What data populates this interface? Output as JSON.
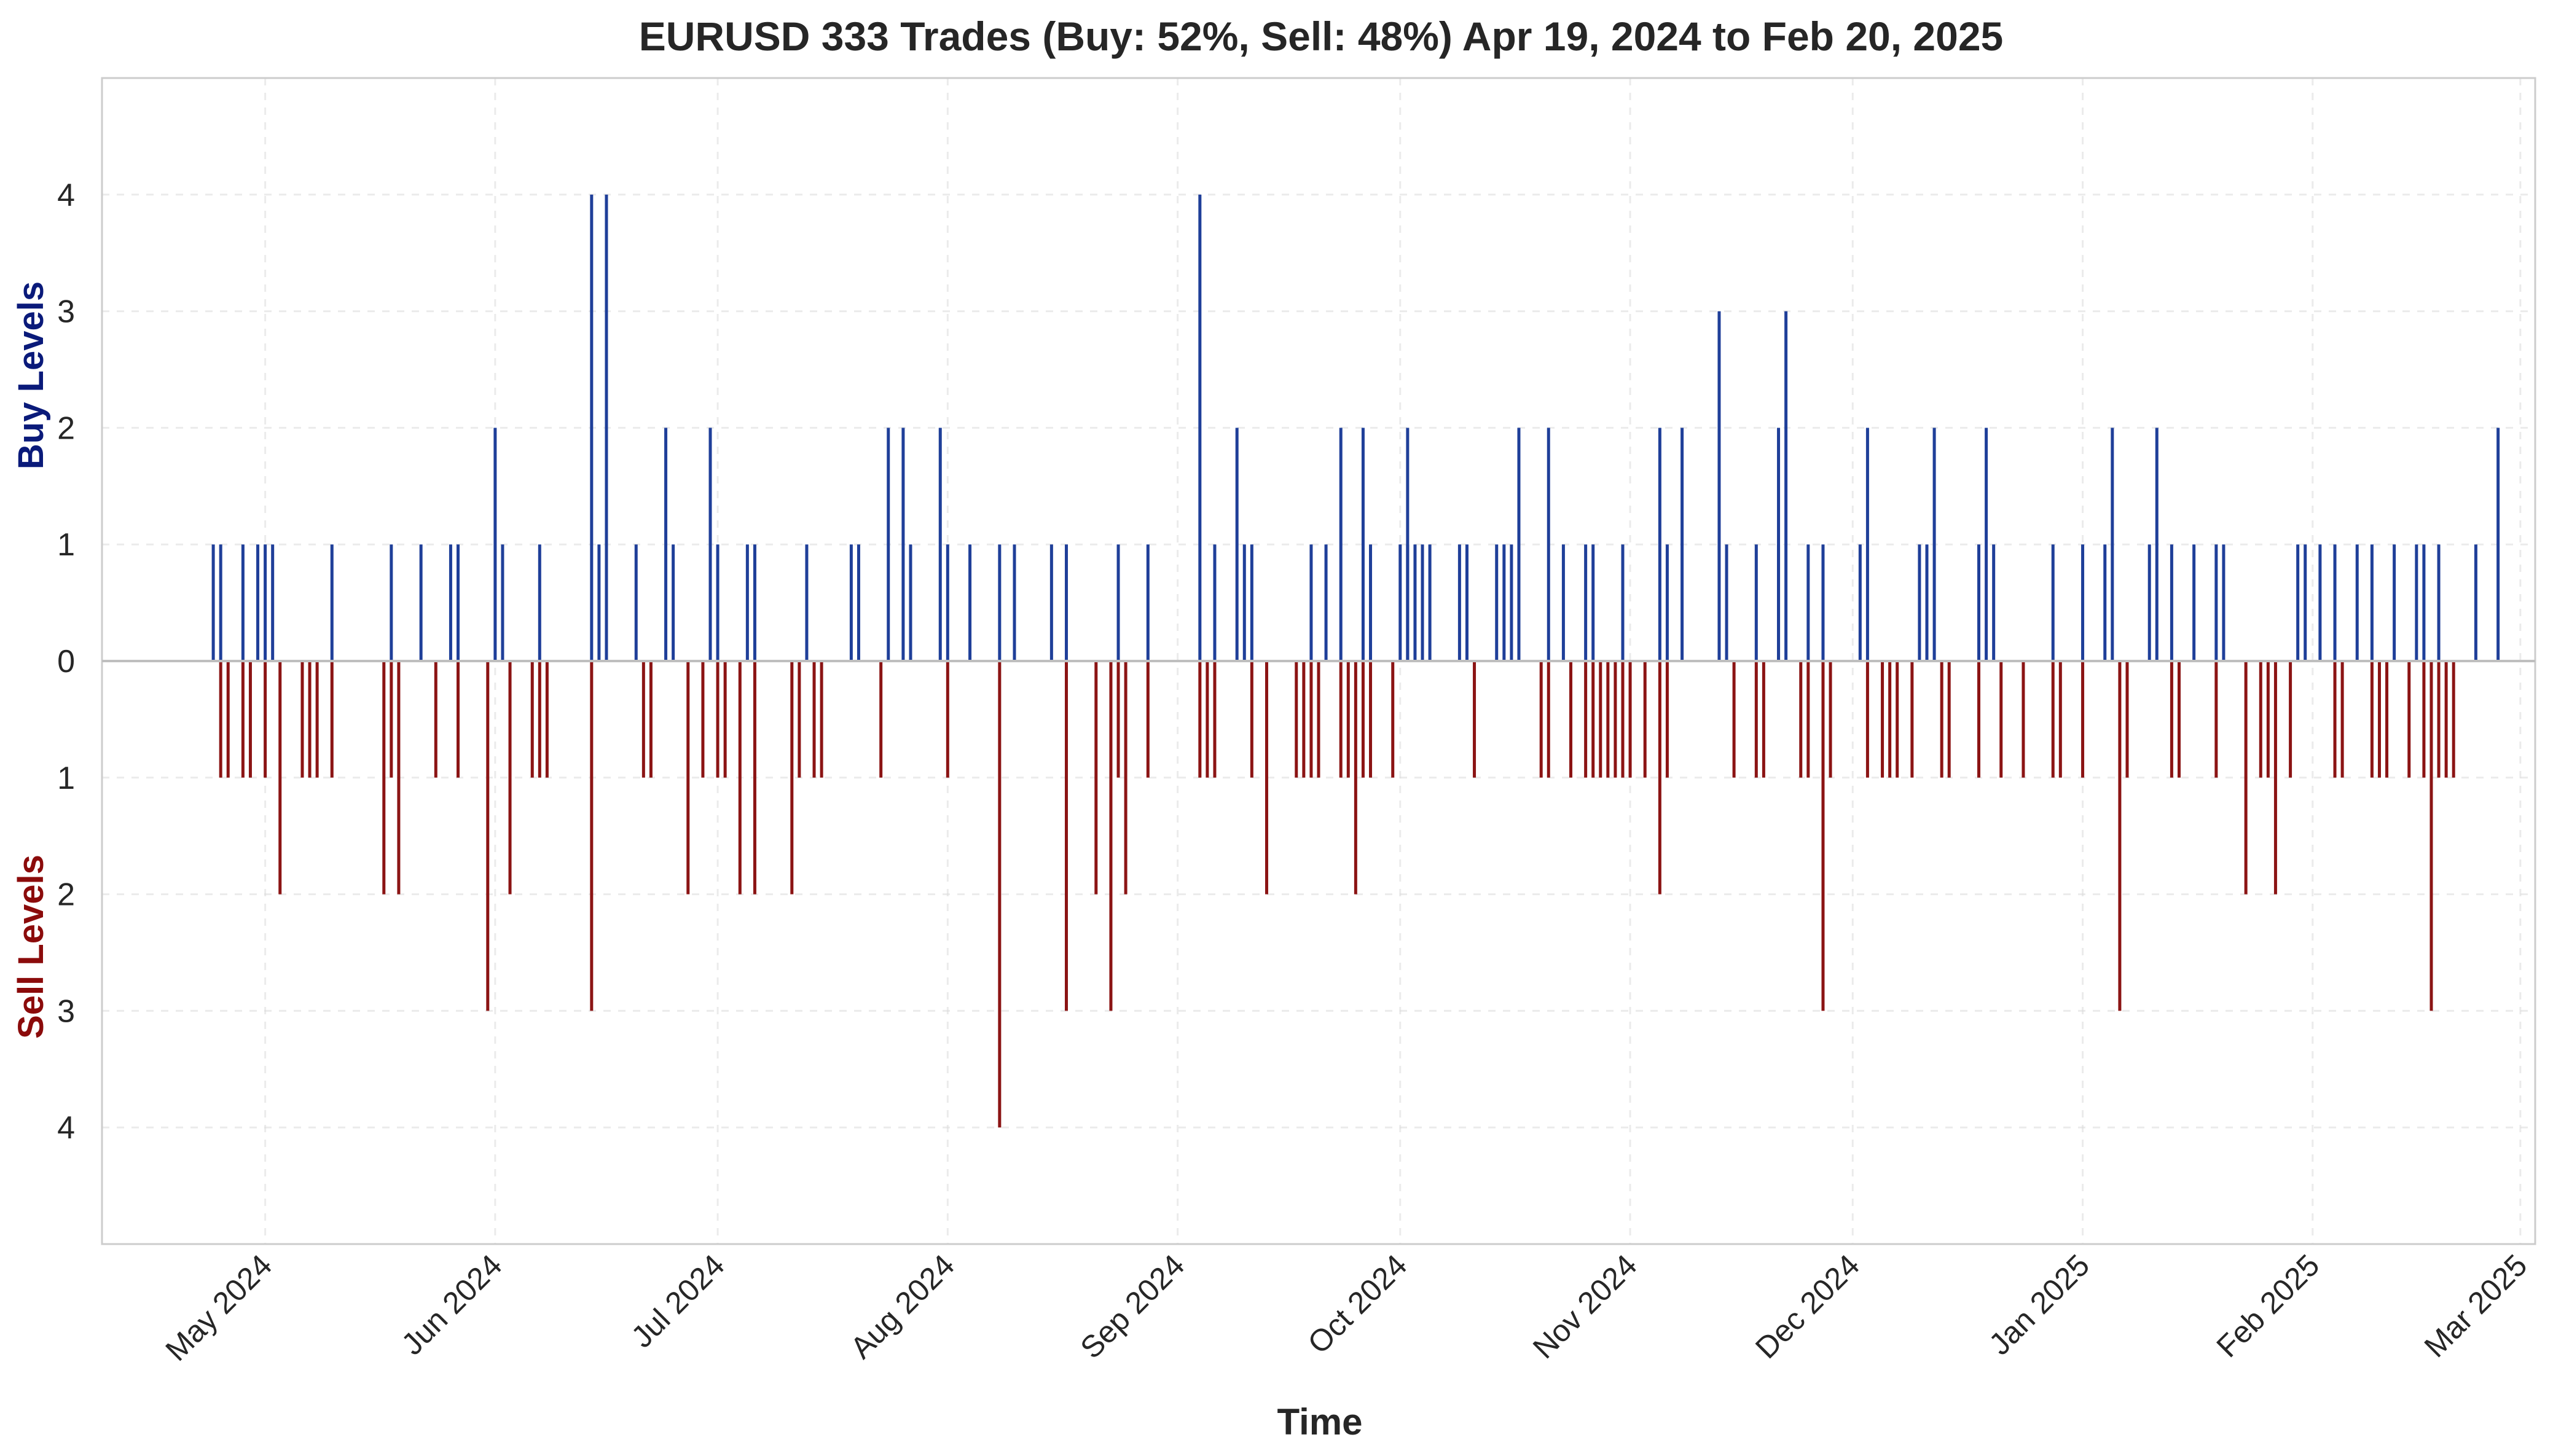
{
  "chart_data": {
    "type": "bar",
    "title": "EURUSD 333 Trades (Buy: 52%, Sell: 48%) Apr 19, 2024 to Feb 20, 2025",
    "xlabel": "Time",
    "ylabel_buy": "Buy Levels",
    "ylabel_sell": "Sell Levels",
    "ylim": [
      -5,
      5
    ],
    "xlim": [
      "2024-04-09",
      "2025-03-03"
    ],
    "grid": true,
    "y_ticks": [
      {
        "value": 4,
        "label": "4"
      },
      {
        "value": 3,
        "label": "3"
      },
      {
        "value": 2,
        "label": "2"
      },
      {
        "value": 1,
        "label": "1"
      },
      {
        "value": 0,
        "label": "0"
      },
      {
        "value": -1,
        "label": "1"
      },
      {
        "value": -2,
        "label": "2"
      },
      {
        "value": -3,
        "label": "3"
      },
      {
        "value": -4,
        "label": "4"
      }
    ],
    "x_ticks": [
      {
        "date": "2024-05-01",
        "label": "May 2024"
      },
      {
        "date": "2024-06-01",
        "label": "Jun 2024"
      },
      {
        "date": "2024-07-01",
        "label": "Jul 2024"
      },
      {
        "date": "2024-08-01",
        "label": "Aug 2024"
      },
      {
        "date": "2024-09-01",
        "label": "Sep 2024"
      },
      {
        "date": "2024-10-01",
        "label": "Oct 2024"
      },
      {
        "date": "2024-11-01",
        "label": "Nov 2024"
      },
      {
        "date": "2024-12-01",
        "label": "Dec 2024"
      },
      {
        "date": "2025-01-01",
        "label": "Jan 2025"
      },
      {
        "date": "2025-02-01",
        "label": "Feb 2025"
      },
      {
        "date": "2025-03-01",
        "label": "Mar 2025"
      }
    ],
    "series": [
      {
        "name": "Buy",
        "color": "#1f3f99",
        "points": [
          [
            "2024-04-24",
            1
          ],
          [
            "2024-04-25",
            1
          ],
          [
            "2024-04-28",
            1
          ],
          [
            "2024-04-30",
            1
          ],
          [
            "2024-05-01",
            1
          ],
          [
            "2024-05-02",
            1
          ],
          [
            "2024-05-10",
            1
          ],
          [
            "2024-05-18",
            1
          ],
          [
            "2024-05-22",
            1
          ],
          [
            "2024-05-26",
            1
          ],
          [
            "2024-05-27",
            1
          ],
          [
            "2024-06-01",
            2
          ],
          [
            "2024-06-02",
            1
          ],
          [
            "2024-06-07",
            1
          ],
          [
            "2024-06-14",
            4
          ],
          [
            "2024-06-15",
            1
          ],
          [
            "2024-06-16",
            4
          ],
          [
            "2024-06-20",
            1
          ],
          [
            "2024-06-24",
            2
          ],
          [
            "2024-06-25",
            1
          ],
          [
            "2024-06-30",
            2
          ],
          [
            "2024-07-01",
            1
          ],
          [
            "2024-07-05",
            1
          ],
          [
            "2024-07-06",
            1
          ],
          [
            "2024-07-13",
            1
          ],
          [
            "2024-07-19",
            1
          ],
          [
            "2024-07-20",
            1
          ],
          [
            "2024-07-24",
            2
          ],
          [
            "2024-07-26",
            2
          ],
          [
            "2024-07-27",
            1
          ],
          [
            "2024-07-31",
            2
          ],
          [
            "2024-08-01",
            1
          ],
          [
            "2024-08-04",
            1
          ],
          [
            "2024-08-08",
            1
          ],
          [
            "2024-08-10",
            1
          ],
          [
            "2024-08-15",
            1
          ],
          [
            "2024-08-17",
            1
          ],
          [
            "2024-08-24",
            1
          ],
          [
            "2024-08-28",
            1
          ],
          [
            "2024-09-04",
            4
          ],
          [
            "2024-09-06",
            1
          ],
          [
            "2024-09-09",
            2
          ],
          [
            "2024-09-10",
            1
          ],
          [
            "2024-09-11",
            1
          ],
          [
            "2024-09-19",
            1
          ],
          [
            "2024-09-21",
            1
          ],
          [
            "2024-09-23",
            2
          ],
          [
            "2024-09-26",
            2
          ],
          [
            "2024-09-27",
            1
          ],
          [
            "2024-10-01",
            1
          ],
          [
            "2024-10-02",
            1
          ],
          [
            "2024-10-02",
            2
          ],
          [
            "2024-10-03",
            1
          ],
          [
            "2024-10-04",
            1
          ],
          [
            "2024-10-05",
            1
          ],
          [
            "2024-10-09",
            1
          ],
          [
            "2024-10-10",
            1
          ],
          [
            "2024-10-14",
            1
          ],
          [
            "2024-10-15",
            1
          ],
          [
            "2024-10-16",
            1
          ],
          [
            "2024-10-17",
            2
          ],
          [
            "2024-10-21",
            2
          ],
          [
            "2024-10-23",
            1
          ],
          [
            "2024-10-26",
            1
          ],
          [
            "2024-10-27",
            1
          ],
          [
            "2024-10-31",
            1
          ],
          [
            "2024-11-05",
            2
          ],
          [
            "2024-11-06",
            1
          ],
          [
            "2024-11-08",
            2
          ],
          [
            "2024-11-13",
            3
          ],
          [
            "2024-11-14",
            1
          ],
          [
            "2024-11-18",
            1
          ],
          [
            "2024-11-21",
            2
          ],
          [
            "2024-11-21",
            1
          ],
          [
            "2024-11-22",
            3
          ],
          [
            "2024-11-25",
            1
          ],
          [
            "2024-11-27",
            1
          ],
          [
            "2024-12-02",
            1
          ],
          [
            "2024-12-03",
            2
          ],
          [
            "2024-12-10",
            1
          ],
          [
            "2024-12-11",
            1
          ],
          [
            "2024-12-12",
            2
          ],
          [
            "2024-12-18",
            1
          ],
          [
            "2024-12-19",
            2
          ],
          [
            "2024-12-20",
            1
          ],
          [
            "2024-12-28",
            1
          ],
          [
            "2025-01-01",
            1
          ],
          [
            "2025-01-04",
            1
          ],
          [
            "2025-01-05",
            2
          ],
          [
            "2025-01-10",
            1
          ],
          [
            "2025-01-11",
            2
          ],
          [
            "2025-01-13",
            1
          ],
          [
            "2025-01-16",
            1
          ],
          [
            "2025-01-19",
            1
          ],
          [
            "2025-01-20",
            1
          ],
          [
            "2025-01-30",
            1
          ],
          [
            "2025-01-31",
            1
          ],
          [
            "2025-02-02",
            1
          ],
          [
            "2025-02-04",
            1
          ],
          [
            "2025-02-07",
            1
          ],
          [
            "2025-02-09",
            1
          ],
          [
            "2025-02-12",
            1
          ],
          [
            "2025-02-15",
            1
          ],
          [
            "2025-02-16",
            1
          ],
          [
            "2025-02-18",
            1
          ],
          [
            "2025-02-23",
            1
          ],
          [
            "2025-02-26",
            2
          ]
        ]
      },
      {
        "name": "Sell",
        "color": "#8b1414",
        "points": [
          [
            "2024-04-25",
            1
          ],
          [
            "2024-04-26",
            1
          ],
          [
            "2024-04-28",
            1
          ],
          [
            "2024-04-29",
            1
          ],
          [
            "2024-05-01",
            1
          ],
          [
            "2024-05-03",
            2
          ],
          [
            "2024-05-06",
            1
          ],
          [
            "2024-05-07",
            1
          ],
          [
            "2024-05-08",
            1
          ],
          [
            "2024-05-10",
            1
          ],
          [
            "2024-05-17",
            2
          ],
          [
            "2024-05-18",
            1
          ],
          [
            "2024-05-19",
            2
          ],
          [
            "2024-05-24",
            1
          ],
          [
            "2024-05-27",
            1
          ],
          [
            "2024-05-31",
            3
          ],
          [
            "2024-06-03",
            2
          ],
          [
            "2024-06-06",
            1
          ],
          [
            "2024-06-07",
            1
          ],
          [
            "2024-06-08",
            1
          ],
          [
            "2024-06-14",
            3
          ],
          [
            "2024-06-21",
            1
          ],
          [
            "2024-06-22",
            1
          ],
          [
            "2024-06-27",
            2
          ],
          [
            "2024-06-29",
            1
          ],
          [
            "2024-07-01",
            1
          ],
          [
            "2024-07-02",
            1
          ],
          [
            "2024-07-04",
            2
          ],
          [
            "2024-07-06",
            2
          ],
          [
            "2024-07-11",
            2
          ],
          [
            "2024-07-12",
            1
          ],
          [
            "2024-07-14",
            1
          ],
          [
            "2024-07-15",
            1
          ],
          [
            "2024-07-23",
            1
          ],
          [
            "2024-08-01",
            1
          ],
          [
            "2024-08-08",
            4
          ],
          [
            "2024-08-17",
            3
          ],
          [
            "2024-08-21",
            2
          ],
          [
            "2024-08-23",
            3
          ],
          [
            "2024-08-24",
            1
          ],
          [
            "2024-08-25",
            2
          ],
          [
            "2024-08-28",
            1
          ],
          [
            "2024-09-04",
            1
          ],
          [
            "2024-09-05",
            1
          ],
          [
            "2024-09-06",
            1
          ],
          [
            "2024-09-11",
            1
          ],
          [
            "2024-09-13",
            2
          ],
          [
            "2024-09-17",
            1
          ],
          [
            "2024-09-18",
            1
          ],
          [
            "2024-09-19",
            1
          ],
          [
            "2024-09-20",
            1
          ],
          [
            "2024-09-23",
            1
          ],
          [
            "2024-09-24",
            1
          ],
          [
            "2024-09-25",
            2
          ],
          [
            "2024-09-26",
            1
          ],
          [
            "2024-09-27",
            1
          ],
          [
            "2024-09-30",
            1
          ],
          [
            "2024-10-11",
            1
          ],
          [
            "2024-10-20",
            1
          ],
          [
            "2024-10-21",
            1
          ],
          [
            "2024-10-24",
            1
          ],
          [
            "2024-10-26",
            1
          ],
          [
            "2024-10-27",
            1
          ],
          [
            "2024-10-28",
            1
          ],
          [
            "2024-10-29",
            1
          ],
          [
            "2024-10-30",
            1
          ],
          [
            "2024-10-31",
            1
          ],
          [
            "2024-11-01",
            1
          ],
          [
            "2024-11-03",
            1
          ],
          [
            "2024-11-05",
            2
          ],
          [
            "2024-11-06",
            1
          ],
          [
            "2024-11-15",
            1
          ],
          [
            "2024-11-18",
            1
          ],
          [
            "2024-11-19",
            1
          ],
          [
            "2024-11-24",
            1
          ],
          [
            "2024-11-25",
            1
          ],
          [
            "2024-11-27",
            3
          ],
          [
            "2024-11-28",
            1
          ],
          [
            "2024-12-03",
            1
          ],
          [
            "2024-12-05",
            1
          ],
          [
            "2024-12-06",
            1
          ],
          [
            "2024-12-07",
            1
          ],
          [
            "2024-12-09",
            1
          ],
          [
            "2024-12-13",
            1
          ],
          [
            "2024-12-14",
            1
          ],
          [
            "2024-12-18",
            1
          ],
          [
            "2024-12-21",
            1
          ],
          [
            "2024-12-24",
            1
          ],
          [
            "2024-12-28",
            1
          ],
          [
            "2024-12-29",
            1
          ],
          [
            "2025-01-01",
            1
          ],
          [
            "2025-01-06",
            3
          ],
          [
            "2025-01-07",
            1
          ],
          [
            "2025-01-13",
            1
          ],
          [
            "2025-01-14",
            1
          ],
          [
            "2025-01-19",
            1
          ],
          [
            "2025-01-23",
            2
          ],
          [
            "2025-01-25",
            1
          ],
          [
            "2025-01-26",
            1
          ],
          [
            "2025-01-27",
            2
          ],
          [
            "2025-01-29",
            1
          ],
          [
            "2025-02-04",
            1
          ],
          [
            "2025-02-05",
            1
          ],
          [
            "2025-02-09",
            1
          ],
          [
            "2025-02-10",
            1
          ],
          [
            "2025-02-11",
            1
          ],
          [
            "2025-02-14",
            1
          ],
          [
            "2025-02-16",
            1
          ],
          [
            "2025-02-17",
            3
          ],
          [
            "2025-02-18",
            1
          ],
          [
            "2025-02-19",
            1
          ],
          [
            "2025-02-20",
            1
          ]
        ]
      }
    ]
  }
}
